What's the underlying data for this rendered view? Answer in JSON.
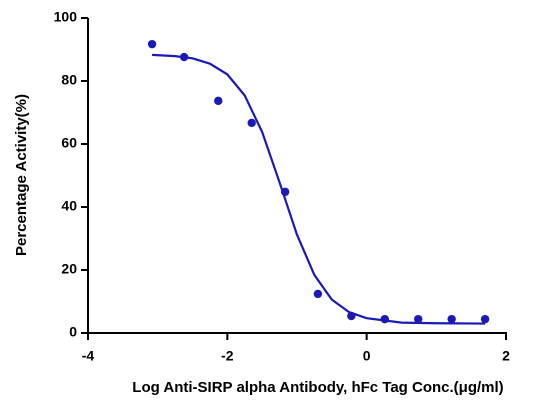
{
  "chart_data": {
    "type": "scatter",
    "x_label": "Log Anti-SIRP alpha Antibody, hFc Tag Conc.(μg/ml)",
    "y_label": "Percentage Activity(%)",
    "xlim": [
      -4,
      2
    ],
    "xticks": [
      -4,
      -2,
      0,
      2
    ],
    "ylim": [
      0,
      100
    ],
    "yticks": [
      0,
      20,
      40,
      60,
      80,
      100
    ],
    "series": [
      {
        "color": "#1a1ab8",
        "mode": "markers",
        "x": [
          -3.08,
          -2.62,
          -2.13,
          -1.65,
          -1.17,
          -0.7,
          -0.22,
          0.26,
          0.74,
          1.22,
          1.7
        ],
        "values": [
          91.7,
          87.6,
          73.7,
          66.7,
          44.8,
          12.4,
          5.4,
          4.4,
          4.4,
          4.4,
          4.4
        ]
      },
      {
        "color": "#1a1ab8",
        "mode": "line",
        "x": [
          -3.08,
          -2.75,
          -2.5,
          -2.25,
          -2,
          -1.75,
          -1.5,
          -1.25,
          -1,
          -0.75,
          -0.5,
          -0.25,
          0,
          0.5,
          1,
          1.7
        ],
        "values": [
          88.3,
          87.9,
          87.2,
          85.5,
          82.1,
          75.4,
          63.8,
          47.8,
          31.2,
          18.4,
          10.6,
          6.6,
          4.7,
          3.3,
          3.1,
          3.0
        ]
      }
    ]
  }
}
